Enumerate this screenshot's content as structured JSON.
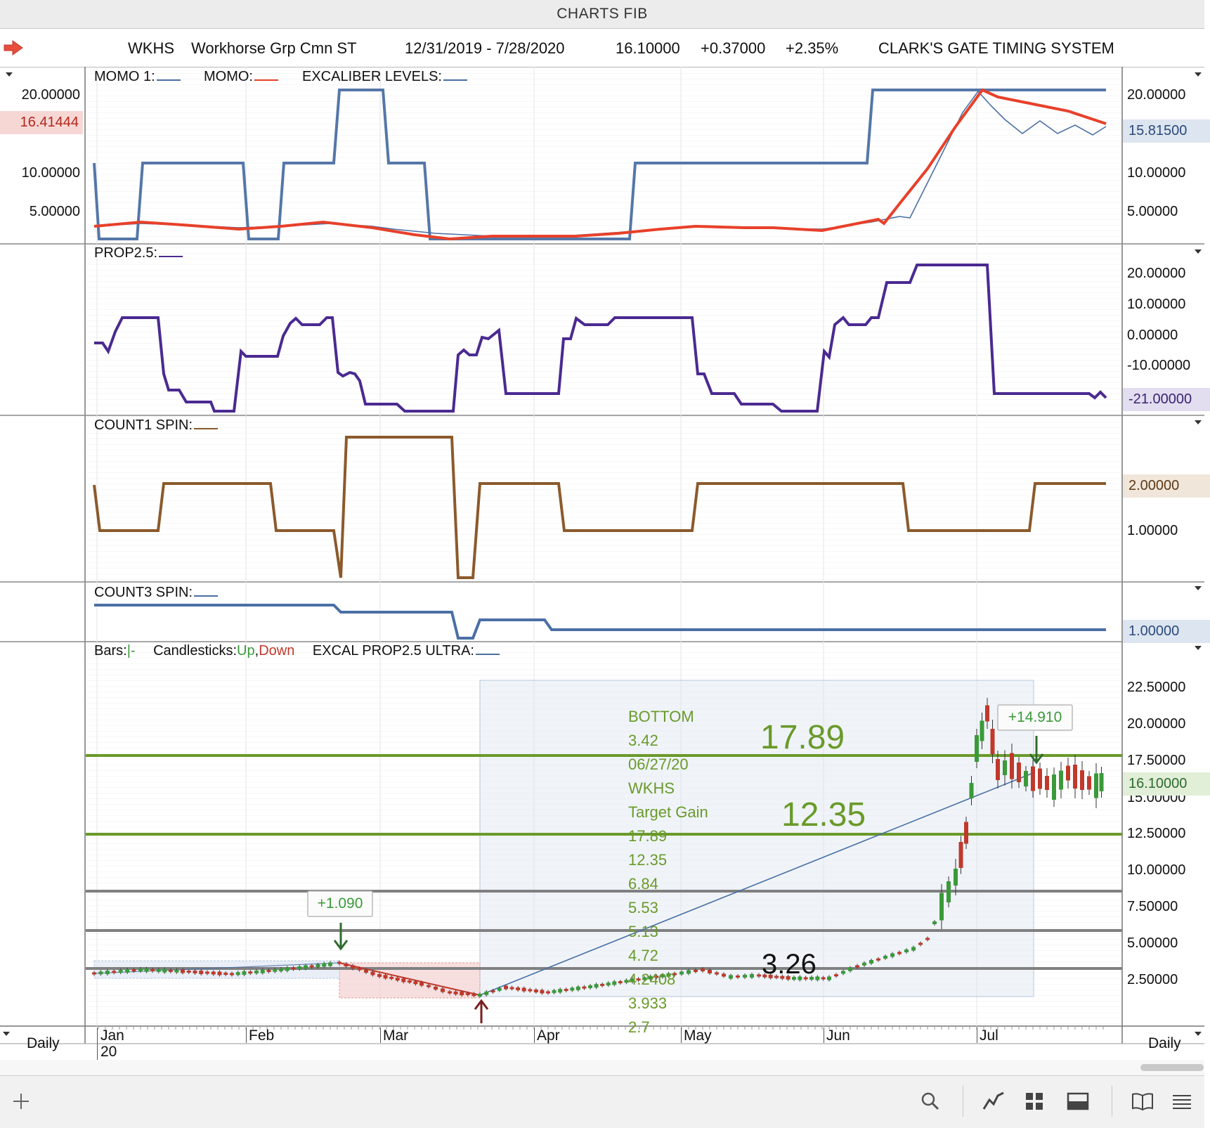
{
  "window": {
    "title": "CHARTS FIB"
  },
  "header": {
    "symbol": "WKHS",
    "name": "Workhorse Grp Cmn ST",
    "date_range": "12/31/2019 - 7/28/2020",
    "price": "16.10000",
    "change": "+0.37000",
    "change_pct": "+2.35%",
    "system": "CLARK'S GATE TIMING SYSTEM"
  },
  "panels": {
    "momo": {
      "label1": "MOMO 1:",
      "label2": "MOMO:",
      "label3": "EXCALIBER LEVELS:",
      "right_ticks": [
        "20.00000",
        "10.00000",
        "5.00000"
      ],
      "left_ticks": [
        "20.00000",
        "10.00000",
        "5.00000"
      ],
      "left_value": "16.41444",
      "right_value": "15.81500",
      "colors": {
        "momo1": "#4a6fa5",
        "momo": "#e8402a"
      }
    },
    "prop": {
      "label": "PROP2.5:",
      "right_ticks": [
        "20.00000",
        "10.00000",
        "0.00000",
        "-10.00000"
      ],
      "right_value": "-21.00000",
      "color": "#4b2a91"
    },
    "count1": {
      "label": "COUNT1 SPIN:",
      "right_ticks": [
        "1.00000"
      ],
      "right_value": "2.00000",
      "color": "#8b5a2b"
    },
    "count3": {
      "label": "COUNT3 SPIN:",
      "right_value": "1.00000",
      "color": "#4a6fa5"
    },
    "price": {
      "bars_label": "Bars:",
      "bars_sym": "|-",
      "candles_label": "Candlesticks:",
      "up_label": "Up",
      "comma": ",",
      "down_label": "Down",
      "ultra_label": "EXCAL PROP2.5 ULTRA:",
      "right_ticks": [
        "22.50000",
        "20.00000",
        "17.50000",
        "12.50000",
        "10.00000",
        "7.50000",
        "5.00000",
        "2.50000"
      ],
      "hidden_tick": "15.00000",
      "right_value": "16.10000",
      "fib_text": [
        "BOTTOM",
        "3.42",
        "06/27/20",
        "WKHS",
        "Target Gain",
        "17.89",
        "12.35",
        "6.84",
        "5.53",
        "5.13",
        "4.72",
        "4.2408",
        "3.933",
        "2.7"
      ],
      "big_top": "17.89",
      "big_mid": "12.35",
      "big_low": "3.26",
      "gain_box_1": "+1.090",
      "gain_box_2": "+14.910",
      "colors": {
        "up": "#3a9a3a",
        "down": "#c0392b",
        "fib_green": "#6a9a2a",
        "fib_gray": "#808080"
      }
    }
  },
  "timeaxis": {
    "period_left": "Daily",
    "period_right": "Daily",
    "months": [
      "Jan",
      "Feb",
      "Mar",
      "Apr",
      "May",
      "Jun",
      "Jul"
    ],
    "year": "20"
  },
  "toolbar": {
    "icons": [
      "plus-icon",
      "search-icon",
      "line-chart-icon",
      "grid-icon",
      "panel-icon",
      "book-icon",
      "menu-icon"
    ]
  }
}
